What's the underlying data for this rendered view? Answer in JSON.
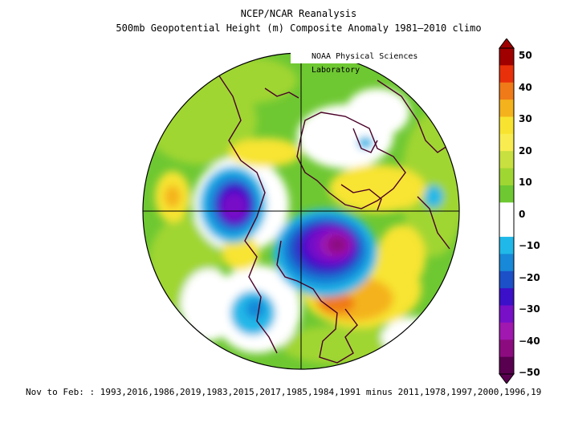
{
  "header": {
    "title": "NCEP/NCAR Reanalysis",
    "subtitle": "500mb Geopotential Height (m) Composite Anomaly 1981–2010 climo",
    "credit": "NOAA Physical Sciences Laboratory"
  },
  "colorbar": {
    "labels": [
      "50",
      "40",
      "30",
      "20",
      "10",
      "0",
      "−10",
      "−20",
      "−30",
      "−40",
      "−50"
    ],
    "colors": [
      "#a00000",
      "#e8300a",
      "#f07a18",
      "#f4b21c",
      "#f8e430",
      "#f8ec50",
      "#c8e040",
      "#a0d632",
      "#6ec832",
      "#ffffff",
      "#ffffff",
      "#20b8e8",
      "#1888d8",
      "#1c50c8",
      "#3c10c8",
      "#7810c8",
      "#a018b0",
      "#8c0c80",
      "#5a0050"
    ]
  },
  "footer": {
    "text": "Nov to Feb: : 1993,2016,1986,2019,1983,2015,2017,1985,1984,1991 minus 2011,1978,1997,2000,1996,19"
  }
}
